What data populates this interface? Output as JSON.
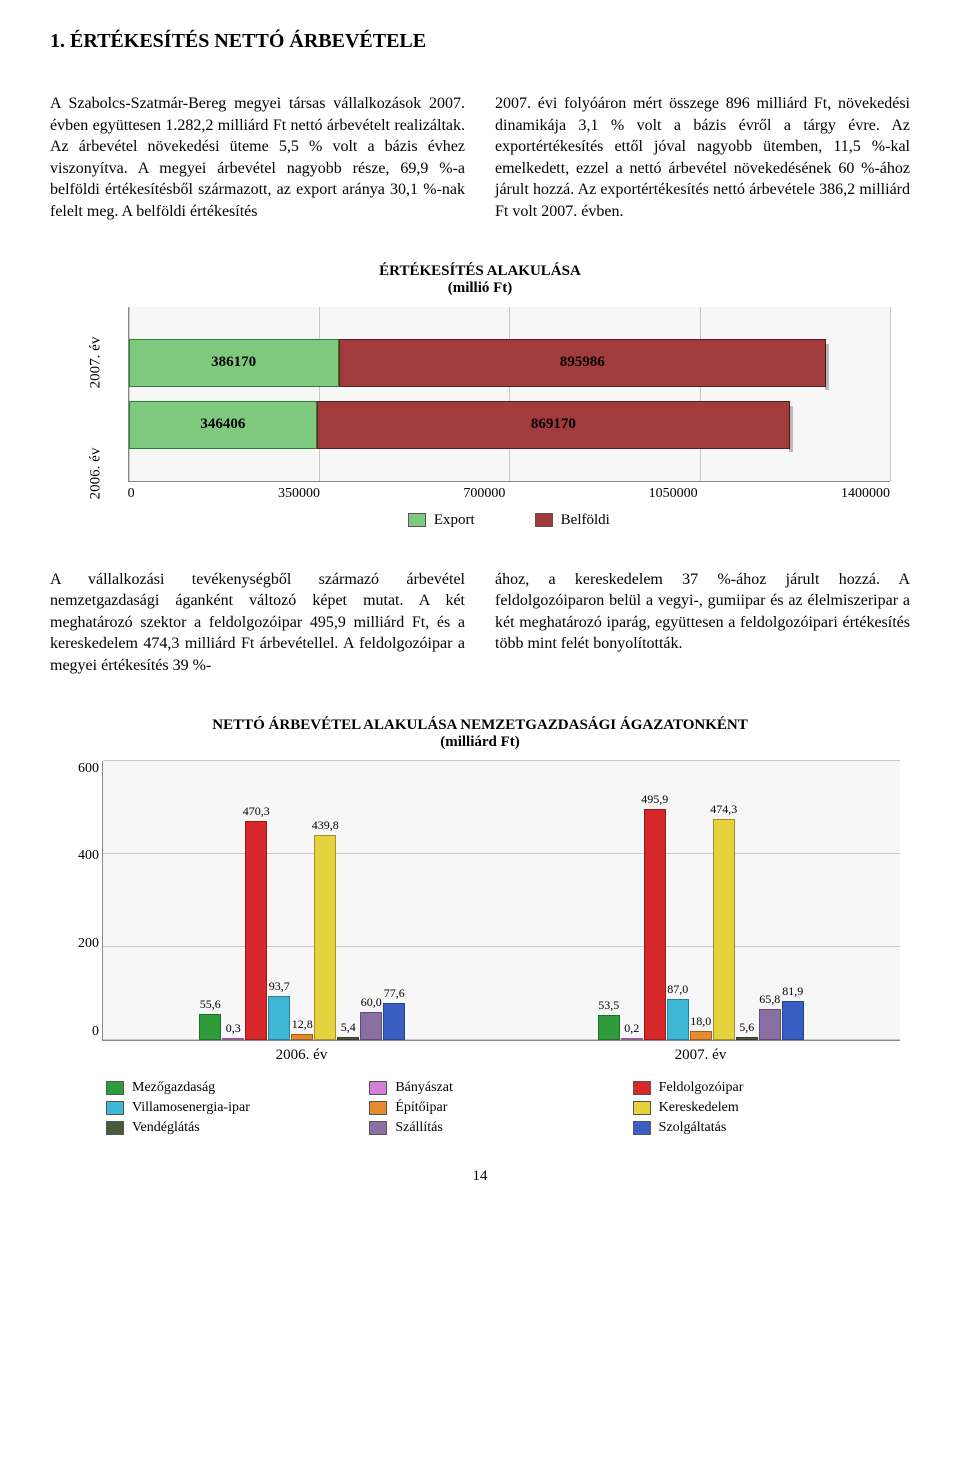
{
  "section_title": "1. ÉRTÉKESÍTÉS NETTÓ ÁRBEVÉTELE",
  "para_left": "A Szabolcs-Szatmár-Bereg megyei társas vállalkozások 2007. évben együttesen 1.282,2 milliárd Ft nettó árbevételt realizáltak. Az árbevétel növekedési üteme 5,5 % volt a bázis évhez viszonyítva. A megyei árbevétel nagyobb része, 69,9 %-a belföldi értékesítésből származott, az export aránya 30,1 %-nak felelt meg. A belföldi értékesítés",
  "para_right": "2007. évi folyóáron mért összege 896 milliárd Ft, növekedési dinamikája 3,1 % volt a bázis évről a tárgy évre. Az exportértékesítés ettől jóval nagyobb ütemben, 11,5 %-kal emelkedett, ezzel a nettó árbevétel növekedésének 60 %-ához járult hozzá. Az exportértékesítés nettó árbevétele 386,2 milliárd Ft volt 2007. évben.",
  "chart1": {
    "title": "ÉRTÉKESÍTÉS ALAKULÁSA",
    "subtitle": "(millió Ft)",
    "type": "stacked_horizontal_bar",
    "xmax": 1400000,
    "xticks": [
      0,
      350000,
      700000,
      1050000,
      1400000
    ],
    "ylabels": [
      "2007. év",
      "2006. év"
    ],
    "rows": [
      {
        "export": 386170,
        "belfoldi": 895986
      },
      {
        "export": 346406,
        "belfoldi": 869170
      }
    ],
    "colors": {
      "export": "#7fc97f",
      "belfoldi": "#a23b3b",
      "export_border": "#2e7d32",
      "belfoldi_border": "#5b1f1f"
    },
    "legend": [
      {
        "label": "Export",
        "color": "#7fc97f"
      },
      {
        "label": "Belföldi",
        "color": "#a23b3b"
      }
    ]
  },
  "para2_left": "A vállalkozási tevékenységből származó árbevétel nemzetgazdasági áganként változó képet mutat. A két meghatározó szektor a feldolgozóipar 495,9 milliárd Ft, és a kereskedelem 474,3 milliárd Ft árbevétellel. A feldolgozóipar a megyei értékesítés 39 %-",
  "para2_right": "ához, a kereskedelem 37 %-ához járult hozzá. A feldolgozóiparon belül a vegyi-, gumiipar és az élelmiszeripar a két meghatározó iparág, együttesen a feldolgozóipari értékesítés több mint felét bonyolították.",
  "chart2": {
    "title": "NETTÓ ÁRBEVÉTEL ALAKULÁSA  NEMZETGAZDASÁGI ÁGAZATONKÉNT",
    "subtitle": "(milliárd Ft)",
    "type": "grouped_vertical_bar",
    "ymax": 600,
    "yticks": [
      600,
      400,
      200,
      0
    ],
    "groups": [
      "2006. év",
      "2007. év"
    ],
    "series": [
      {
        "name": "Mezőgazdaság",
        "color": "#2e9b3c",
        "vals": [
          55.6,
          53.5
        ]
      },
      {
        "name": "Bányászat",
        "color": "#d67fd6",
        "vals": [
          0.3,
          0.2
        ]
      },
      {
        "name": "Feldolgozóipar",
        "color": "#d62828",
        "vals": [
          470.3,
          495.9
        ]
      },
      {
        "name": "Villamosenergia-ipar",
        "color": "#3fb8d6",
        "vals": [
          93.7,
          87.0
        ]
      },
      {
        "name": "Építőipar",
        "color": "#e68a2e",
        "vals": [
          12.8,
          18.0
        ]
      },
      {
        "name": "Kereskedelem",
        "color": "#e6d23c",
        "vals": [
          439.8,
          474.3
        ]
      },
      {
        "name": "Vendéglátás",
        "color": "#4a5a3a",
        "vals": [
          5.4,
          5.6
        ]
      },
      {
        "name": "Szállítás",
        "color": "#8a6fa3",
        "vals": [
          60.0,
          65.8
        ]
      },
      {
        "name": "Szolgáltatás",
        "color": "#3a5fc4",
        "vals": [
          77.6,
          81.9
        ]
      }
    ],
    "bar_labels": [
      [
        "55,6",
        "0,3",
        "470,3",
        "93,7",
        "12,8",
        "439,8",
        "5,4",
        "60,0",
        "77,6"
      ],
      [
        "53,5",
        "0,2",
        "495,9",
        "87,0",
        "18,0",
        "474,3",
        "5,6",
        "65,8",
        "81,9"
      ]
    ]
  },
  "page_number": "14"
}
